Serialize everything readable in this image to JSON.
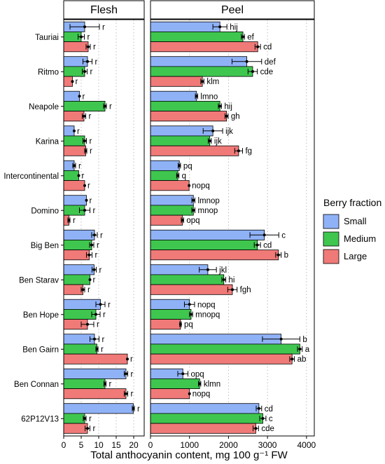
{
  "chart_data": {
    "type": "bar",
    "orientation": "horizontal",
    "xlabel": "Total anthocyanin content, mg 100 g⁻¹ FW",
    "categories": [
      "Tauriai",
      "Ritmo",
      "Neapole",
      "Karina",
      "Intercontinental",
      "Domino",
      "Big Ben",
      "Ben Starav",
      "Ben Hope",
      "Ben Gairn",
      "Ben Connan",
      "62P12V13"
    ],
    "legend": {
      "title": "Berry fraction",
      "position": "right",
      "entries": [
        "Small",
        "Medium",
        "Large"
      ]
    },
    "colors": {
      "Small": "#8fb2f7",
      "Medium": "#3fc64f",
      "Large": "#f07a78"
    },
    "grid": "vertical dotted",
    "panels": [
      {
        "title": "Flesh",
        "xlim": [
          0,
          23
        ],
        "xticks": [
          0,
          5,
          10,
          15,
          20
        ],
        "series": [
          {
            "name": "Small",
            "values": [
              6.0,
              6.8,
              4.5,
              3.0,
              3.0,
              6.5,
              8.8,
              8.7,
              10.5,
              8.8,
              17.8,
              19.9
            ],
            "errors": [
              4.2,
              1.3,
              0,
              0,
              0.4,
              0,
              0.8,
              0.6,
              1.3,
              1.3,
              0.5,
              0.3
            ],
            "labels": [
              "r",
              "r",
              "r",
              "r",
              "r",
              "r",
              "r",
              "r",
              "r",
              "r",
              "r",
              "r"
            ]
          },
          {
            "name": "Medium",
            "values": [
              5.0,
              6.0,
              11.8,
              6.0,
              4.3,
              6.0,
              8.0,
              7.5,
              9.2,
              9.5,
              11.8,
              6.0
            ],
            "errors": [
              0.9,
              0.7,
              0.4,
              0.5,
              0,
              1.5,
              0.6,
              0,
              1.2,
              0.3,
              0.3,
              0.4
            ],
            "labels": [
              "r",
              "r",
              "r",
              "r",
              "r",
              "r",
              "r",
              "r",
              "r",
              "r",
              "r",
              "r"
            ]
          },
          {
            "name": "Large",
            "values": [
              7.0,
              2.5,
              5.8,
              6.3,
              6.0,
              1.5,
              7.3,
              5.5,
              6.8,
              18.2,
              17.8,
              6.8
            ],
            "errors": [
              0.6,
              0,
              0.5,
              0.3,
              0,
              0.3,
              0.8,
              0.5,
              1.8,
              0,
              0.5,
              0.7
            ],
            "labels": [
              "r",
              "r",
              "r",
              "r",
              "r",
              "r",
              "r",
              "r",
              "r",
              "r",
              "r",
              "r"
            ]
          }
        ]
      },
      {
        "title": "Peel",
        "xlim": [
          0,
          4200
        ],
        "xticks": [
          0,
          1000,
          2000,
          3000,
          4000
        ],
        "series": [
          {
            "name": "Small",
            "values": [
              1780,
              2470,
              1180,
              1600,
              740,
              1100,
              2920,
              1470,
              1000,
              3350,
              830,
              2780
            ],
            "errors": [
              180,
              380,
              30,
              250,
              30,
              40,
              370,
              220,
              130,
              480,
              130,
              70
            ],
            "labels": [
              "hij",
              "def",
              "lmno",
              "ijk",
              "pq",
              "lmnop",
              "c",
              "jkl",
              "nopq",
              "b",
              "opq",
              "cd"
            ]
          },
          {
            "name": "Medium",
            "values": [
              2370,
              2620,
              1780,
              1520,
              700,
              1100,
              2740,
              1880,
              1040,
              3830,
              1260,
              2880
            ],
            "errors": [
              40,
              120,
              40,
              40,
              30,
              40,
              80,
              50,
              40,
              60,
              30,
              80
            ],
            "labels": [
              "ef",
              "cde",
              "hij",
              "ijk",
              "q",
              "mnop",
              "cd",
              "hi",
              "mnopq",
              "a",
              "klmn",
              "c"
            ]
          },
          {
            "name": "Large",
            "values": [
              2750,
              1330,
              1950,
              2260,
              990,
              820,
              3280,
              2100,
              770,
              3630,
              1000,
              2700
            ],
            "errors": [
              70,
              40,
              40,
              100,
              0,
              30,
              70,
              120,
              20,
              60,
              0,
              70
            ],
            "labels": [
              "cd",
              "klm",
              "gh",
              "fg",
              "nopq",
              "opq",
              "b",
              "fgh",
              "pq",
              "ab",
              "nopq",
              "cde"
            ]
          }
        ]
      }
    ]
  }
}
